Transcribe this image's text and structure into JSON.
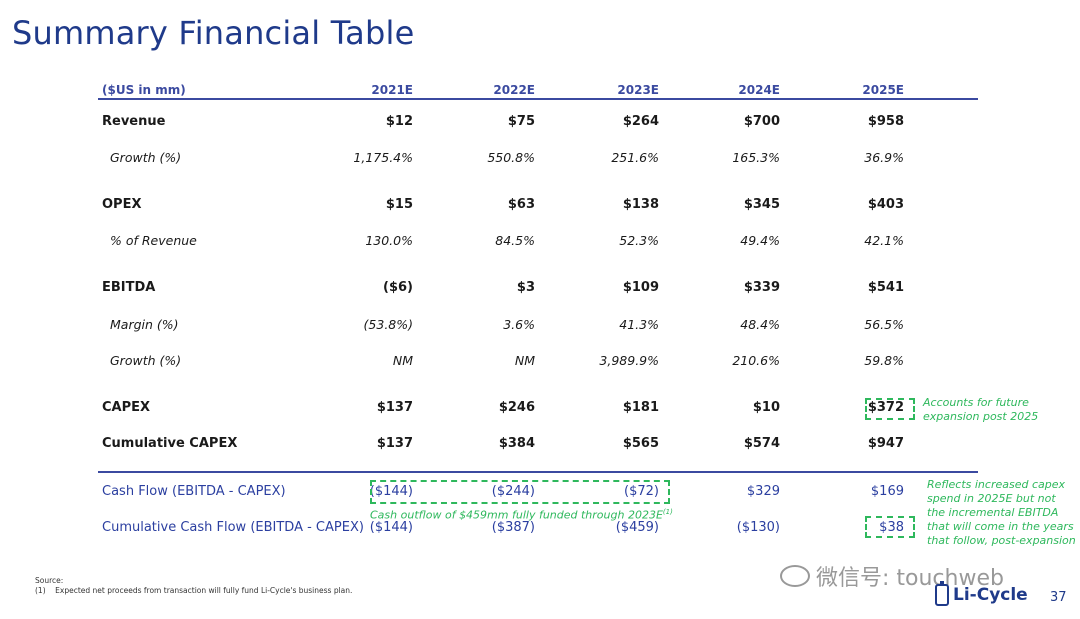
{
  "title": "Summary Financial Table",
  "header": {
    "unit": "($US in mm)",
    "years": [
      "2021E",
      "2022E",
      "2023E",
      "2024E",
      "2025E"
    ]
  },
  "rows": {
    "revenue": {
      "label": "Revenue",
      "values": [
        "$12",
        "$75",
        "$264",
        "$700",
        "$958"
      ]
    },
    "rev_growth": {
      "label": "Growth (%)",
      "values": [
        "1,175.4%",
        "550.8%",
        "251.6%",
        "165.3%",
        "36.9%"
      ]
    },
    "opex": {
      "label": "OPEX",
      "values": [
        "$15",
        "$63",
        "$138",
        "$345",
        "$403"
      ]
    },
    "opex_pct": {
      "label": "% of Revenue",
      "values": [
        "130.0%",
        "84.5%",
        "52.3%",
        "49.4%",
        "42.1%"
      ]
    },
    "ebitda": {
      "label": "EBITDA",
      "values": [
        "($6)",
        "$3",
        "$109",
        "$339",
        "$541"
      ]
    },
    "margin": {
      "label": "Margin (%)",
      "values": [
        "(53.8%)",
        "3.6%",
        "41.3%",
        "48.4%",
        "56.5%"
      ]
    },
    "ebitda_growth": {
      "label": "Growth (%)",
      "values": [
        "NM",
        "NM",
        "3,989.9%",
        "210.6%",
        "59.8%"
      ]
    },
    "capex": {
      "label": "CAPEX",
      "values": [
        "$137",
        "$246",
        "$181",
        "$10",
        "$372"
      ]
    },
    "cum_capex": {
      "label": "Cumulative CAPEX",
      "values": [
        "$137",
        "$384",
        "$565",
        "$574",
        "$947"
      ]
    },
    "cash_flow": {
      "label": "Cash Flow (EBITDA - CAPEX)",
      "values": [
        "($144)",
        "($244)",
        "($72)",
        "$329",
        "$169"
      ]
    },
    "cum_cash_flow": {
      "label": "Cumulative Cash Flow (EBITDA - CAPEX)",
      "values": [
        "($144)",
        "($387)",
        "($459)",
        "($130)",
        "$38"
      ]
    }
  },
  "notes": {
    "capex_note": "Accounts for future expansion post 2025",
    "cash_outflow_note": "Cash outflow of $459mm fully funded through 2023E",
    "cash_outflow_sup": "(1)",
    "cum_cf_note": "Reflects increased capex spend in 2025E but not the incremental EBITDA that will come in the years that follow, post-expansion"
  },
  "source": {
    "label": "Source:",
    "footnote_marker": "(1)",
    "footnote_text": "Expected net proceeds from transaction will fully fund Li-Cycle's business plan."
  },
  "logo_text": "Li-Cycle",
  "page_number": "37",
  "watermark": "微信号: touchweb",
  "colors": {
    "brand": "#1f3a8a",
    "accent_green": "#2eb85c",
    "row_blue": "#2b3fa0"
  }
}
